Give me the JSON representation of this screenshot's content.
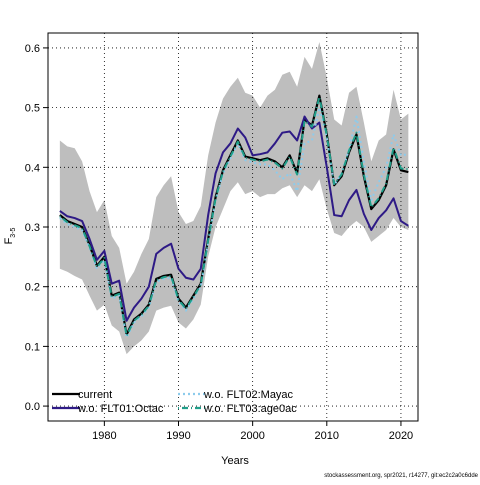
{
  "chart_data": {
    "type": "line",
    "xlabel": "Years",
    "ylabel": "F",
    "ylabel_subscript": "3-5",
    "xlim": [
      1972.4,
      2022.3
    ],
    "ylim": [
      -0.025,
      0.625
    ],
    "xticks": [
      1980,
      1990,
      2000,
      2010,
      2020
    ],
    "yticks": [
      0.0,
      0.1,
      0.2,
      0.3,
      0.4,
      0.5,
      0.6
    ],
    "ytick_labels": [
      "0.0",
      "0.1",
      "0.2",
      "0.3",
      "0.4",
      "0.5",
      "0.6"
    ],
    "grid": true,
    "legend_position": "bottom-left",
    "x": [
      1974,
      1975,
      1976,
      1977,
      1978,
      1979,
      1980,
      1981,
      1982,
      1983,
      1984,
      1985,
      1986,
      1987,
      1988,
      1989,
      1990,
      1991,
      1992,
      1993,
      1994,
      1995,
      1996,
      1997,
      1998,
      1999,
      2000,
      2001,
      2002,
      2003,
      2004,
      2005,
      2006,
      2007,
      2008,
      2009,
      2010,
      2011,
      2012,
      2013,
      2014,
      2015,
      2016,
      2017,
      2018,
      2019,
      2020,
      2021
    ],
    "confidence_band": {
      "color": "#bebebe",
      "upper": [
        0.445,
        0.435,
        0.432,
        0.41,
        0.36,
        0.325,
        0.345,
        0.285,
        0.265,
        0.205,
        0.225,
        0.255,
        0.28,
        0.35,
        0.37,
        0.385,
        0.325,
        0.305,
        0.31,
        0.335,
        0.42,
        0.475,
        0.515,
        0.535,
        0.55,
        0.525,
        0.52,
        0.5,
        0.52,
        0.53,
        0.555,
        0.56,
        0.535,
        0.585,
        0.565,
        0.61,
        0.55,
        0.48,
        0.47,
        0.525,
        0.535,
        0.475,
        0.41,
        0.445,
        0.455,
        0.53,
        0.48,
        0.49
      ],
      "lower": [
        0.23,
        0.225,
        0.218,
        0.212,
        0.185,
        0.16,
        0.17,
        0.135,
        0.125,
        0.087,
        0.1,
        0.11,
        0.125,
        0.16,
        0.165,
        0.168,
        0.14,
        0.13,
        0.145,
        0.17,
        0.25,
        0.3,
        0.33,
        0.36,
        0.375,
        0.355,
        0.36,
        0.35,
        0.355,
        0.355,
        0.365,
        0.37,
        0.35,
        0.37,
        0.36,
        0.38,
        0.33,
        0.29,
        0.285,
        0.3,
        0.31,
        0.3,
        0.275,
        0.285,
        0.295,
        0.315,
        0.3,
        0.295
      ]
    },
    "series": [
      {
        "name": "current",
        "color": "#000000",
        "dash": "solid",
        "values": [
          0.32,
          0.31,
          0.305,
          0.3,
          0.27,
          0.235,
          0.25,
          0.185,
          0.19,
          0.12,
          0.145,
          0.155,
          0.17,
          0.213,
          0.218,
          0.22,
          0.18,
          0.165,
          0.185,
          0.205,
          0.28,
          0.35,
          0.395,
          0.42,
          0.445,
          0.418,
          0.415,
          0.412,
          0.415,
          0.41,
          0.4,
          0.42,
          0.39,
          0.48,
          0.47,
          0.52,
          0.455,
          0.37,
          0.385,
          0.425,
          0.455,
          0.385,
          0.33,
          0.345,
          0.37,
          0.43,
          0.395,
          0.392
        ]
      },
      {
        "name": "w.o. FLT01:Octac",
        "color": "#2e1a86",
        "dash": "solid",
        "values": [
          0.327,
          0.318,
          0.315,
          0.31,
          0.28,
          0.245,
          0.26,
          0.205,
          0.21,
          0.143,
          0.165,
          0.18,
          0.2,
          0.255,
          0.265,
          0.272,
          0.23,
          0.215,
          0.212,
          0.23,
          0.32,
          0.39,
          0.425,
          0.44,
          0.465,
          0.45,
          0.42,
          0.422,
          0.425,
          0.44,
          0.458,
          0.46,
          0.445,
          0.485,
          0.465,
          0.475,
          0.4,
          0.32,
          0.318,
          0.345,
          0.362,
          0.322,
          0.295,
          0.315,
          0.328,
          0.348,
          0.31,
          0.302
        ]
      },
      {
        "name": "w.o. FLT02:Mayac",
        "color": "#8ccbec",
        "dash": "dotted",
        "values": [
          0.315,
          0.305,
          0.3,
          0.295,
          0.265,
          0.23,
          0.245,
          0.18,
          0.185,
          0.115,
          0.14,
          0.15,
          0.165,
          0.208,
          0.213,
          0.215,
          0.175,
          0.16,
          0.18,
          0.2,
          0.275,
          0.345,
          0.39,
          0.415,
          0.44,
          0.412,
          0.408,
          0.405,
          0.405,
          0.395,
          0.38,
          0.39,
          0.36,
          0.44,
          0.445,
          0.5,
          0.45,
          0.37,
          0.39,
          0.43,
          0.485,
          0.41,
          0.345,
          0.375,
          0.4,
          0.455,
          0.42,
          0.422
        ]
      },
      {
        "name": "w.o. FLT03:age0ac",
        "color": "#1f9e89",
        "dash": "dashdot",
        "values": [
          0.318,
          0.308,
          0.303,
          0.298,
          0.268,
          0.233,
          0.248,
          0.183,
          0.188,
          0.118,
          0.143,
          0.153,
          0.168,
          0.211,
          0.216,
          0.218,
          0.178,
          0.163,
          0.183,
          0.203,
          0.278,
          0.348,
          0.393,
          0.418,
          0.443,
          0.416,
          0.413,
          0.41,
          0.413,
          0.408,
          0.398,
          0.418,
          0.388,
          0.478,
          0.468,
          0.518,
          0.453,
          0.372,
          0.388,
          0.428,
          0.458,
          0.388,
          0.333,
          0.348,
          0.373,
          0.433,
          0.398,
          0.397
        ]
      }
    ]
  },
  "legend": {
    "items": [
      {
        "label": "current",
        "color": "#000000",
        "dash": "solid"
      },
      {
        "label": "w.o. FLT01:Octac",
        "color": "#2e1a86",
        "dash": "solid"
      },
      {
        "label": "w.o. FLT02:Mayac",
        "color": "#8ccbec",
        "dash": "dotted"
      },
      {
        "label": "w.o. FLT03:age0ac",
        "color": "#1f9e89",
        "dash": "dashdot"
      }
    ]
  },
  "footer": {
    "text": "stockassessment.org, spr2021, r14277, git:ec2c2a0c6dde"
  }
}
